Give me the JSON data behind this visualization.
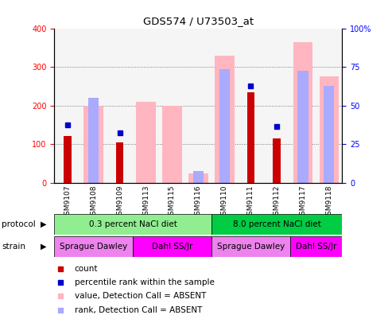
{
  "title": "GDS574 / U73503_at",
  "samples": [
    "GSM9107",
    "GSM9108",
    "GSM9109",
    "GSM9113",
    "GSM9115",
    "GSM9116",
    "GSM9110",
    "GSM9111",
    "GSM9112",
    "GSM9117",
    "GSM9118"
  ],
  "count_values": [
    120,
    0,
    105,
    0,
    0,
    0,
    0,
    235,
    115,
    0,
    0
  ],
  "rank_values": [
    150,
    0,
    130,
    0,
    0,
    0,
    0,
    250,
    145,
    0,
    0
  ],
  "absent_value_bars": [
    0,
    200,
    0,
    210,
    200,
    25,
    330,
    0,
    0,
    365,
    275
  ],
  "absent_rank_bars": [
    0,
    220,
    0,
    0,
    0,
    30,
    295,
    0,
    0,
    290,
    250
  ],
  "ylim": [
    0,
    400
  ],
  "y2lim": [
    0,
    100
  ],
  "yticks": [
    0,
    100,
    200,
    300,
    400
  ],
  "ytick_labels": [
    "0",
    "100",
    "200",
    "300",
    "400"
  ],
  "y2ticks": [
    0,
    25,
    50,
    75,
    100
  ],
  "y2tick_labels": [
    "0",
    "25",
    "50",
    "75",
    "100%"
  ],
  "color_count": "#CC0000",
  "color_rank": "#0000CC",
  "color_absent_value": "#FFB6C1",
  "color_absent_rank": "#AAAAFF",
  "color_proto1": "#90EE90",
  "color_proto2": "#00CC44",
  "color_strain_sd": "#EE82EE",
  "color_strain_dahl": "#FF00FF",
  "background_color": "#FFFFFF"
}
